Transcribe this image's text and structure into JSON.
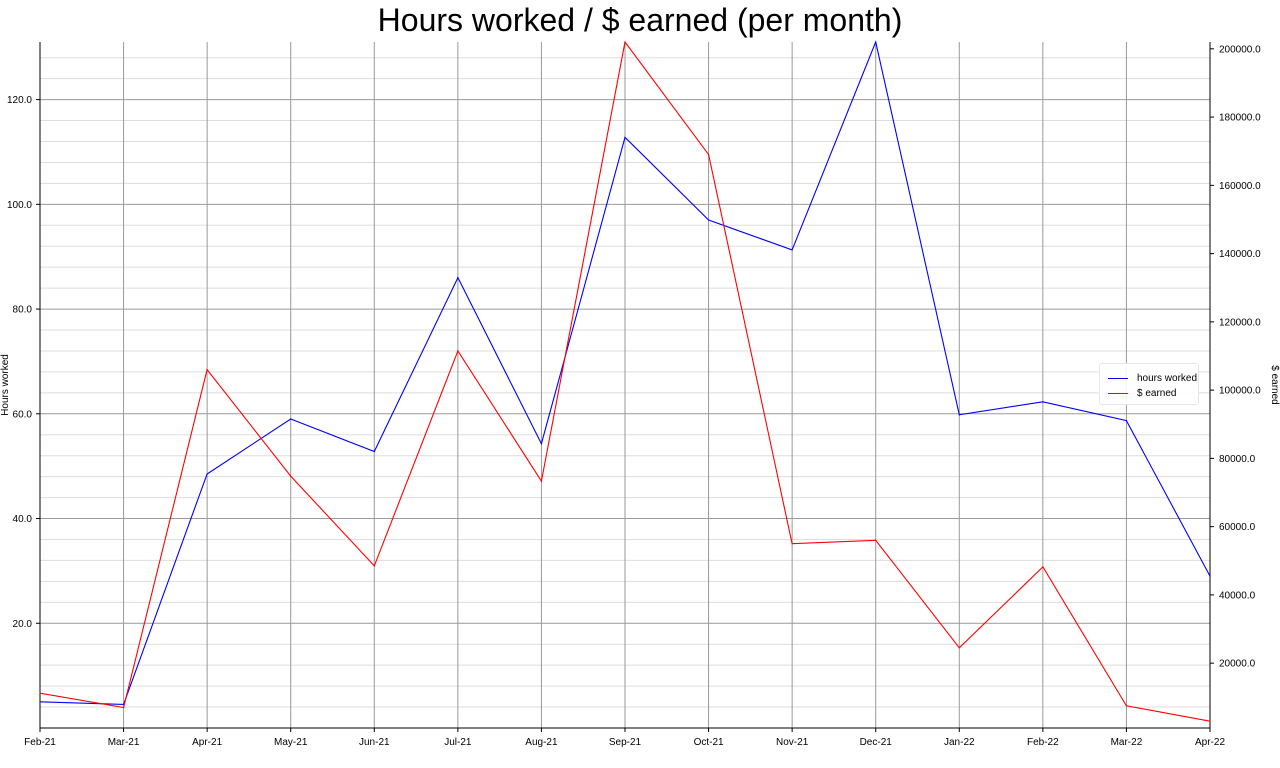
{
  "chart_data": {
    "type": "line",
    "title": "Hours worked / $ earned (per month)",
    "x": [
      "Feb-21",
      "Mar-21",
      "Apr-21",
      "May-21",
      "Jun-21",
      "Jul-21",
      "Aug-21",
      "Sep-21",
      "Oct-21",
      "Nov-21",
      "Dec-21",
      "Jan-22",
      "Feb-22",
      "Mar-22",
      "Apr-22"
    ],
    "series": [
      {
        "name": "hours worked",
        "axis": "left",
        "color": "#0000ff",
        "values": [
          5,
          4.5,
          48.5,
          59,
          52.8,
          86,
          54.3,
          112.8,
          97,
          91.3,
          131,
          59.8,
          62.3,
          58.7,
          29
        ]
      },
      {
        "name": "$ earned",
        "axis": "right",
        "color": "#ff0000",
        "values": [
          11200,
          7000,
          106000,
          74800,
          48500,
          111500,
          73300,
          202000,
          169000,
          55000,
          56000,
          24500,
          48200,
          7500,
          3000
        ]
      }
    ],
    "ylabel": "Hours worked",
    "y2label": "$ earned",
    "ylim": [
      0,
      131
    ],
    "y2lim": [
      1000,
      202000
    ],
    "yticks": [
      "20.0",
      "40.0",
      "60.0",
      "80.0",
      "100.0",
      "120.0"
    ],
    "y2ticks": [
      "20000.0",
      "40000.0",
      "60000.0",
      "80000.0",
      "100000.0",
      "120000.0",
      "140000.0",
      "160000.0",
      "180000.0",
      "200000.0"
    ],
    "grid": true,
    "legend": "right"
  }
}
